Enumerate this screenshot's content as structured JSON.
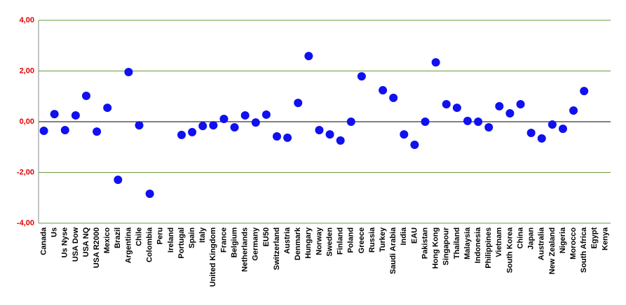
{
  "chart_data": {
    "type": "dot",
    "categories": [
      "Canada",
      "Us",
      "Us Nyse",
      "USA Dow",
      "USA NQ",
      "USA R2000",
      "Mexico",
      "Brazil",
      "Argentina",
      "Chile",
      "Colombia",
      "Peru",
      "Ireland",
      "Portugal",
      "Spain",
      "Italy",
      "United Kingdom",
      "France",
      "Belgium",
      "Netherlands",
      "Germany",
      "EU50",
      "Switzerland",
      "Austria",
      "Denmark",
      "Hungary",
      "Norway",
      "Sweden",
      "Finland",
      "Poland",
      "Greece",
      "Russia",
      "Turkey",
      "Saudi Arabia",
      "India",
      "EAU",
      "Pakistan",
      "Hong Kong",
      "Singapour",
      "Thailand",
      "Malaysia",
      "Indonesia",
      "Philippines",
      "Vietnam",
      "South Korea",
      "China",
      "Japan",
      "Australia",
      "New Zealand",
      "Nigeria",
      "Morocco",
      "South Africa",
      "Egypt",
      "Kenya"
    ],
    "values": [
      -0.36,
      0.3,
      -0.33,
      0.25,
      1.02,
      -0.39,
      0.55,
      -2.29,
      1.96,
      -0.14,
      -2.84,
      null,
      null,
      -0.52,
      -0.41,
      -0.17,
      -0.14,
      0.11,
      -0.22,
      0.25,
      -0.03,
      0.28,
      -0.58,
      -0.63,
      0.74,
      2.59,
      -0.33,
      -0.5,
      -0.74,
      0,
      1.79,
      null,
      1.24,
      0.94,
      -0.5,
      -0.91,
      0,
      2.34,
      0.69,
      0.55,
      0.03,
      0,
      -0.22,
      0.61,
      0.33,
      0.69,
      -0.44,
      -0.66,
      -0.11,
      -0.28,
      0.44,
      1.21,
      null,
      null
    ],
    "color": "#1010f0",
    "ylim": [
      -4,
      4
    ],
    "yticks": [
      {
        "value": -4,
        "label": "-4,00"
      },
      {
        "value": -2,
        "label": "-2,00"
      },
      {
        "value": 0,
        "label": "0,00"
      },
      {
        "value": 2,
        "label": "2,00"
      },
      {
        "value": 4,
        "label": "4,00"
      }
    ],
    "grid": true,
    "grid_color": "#6a9a3a",
    "tick_label_color": "#e00000"
  }
}
